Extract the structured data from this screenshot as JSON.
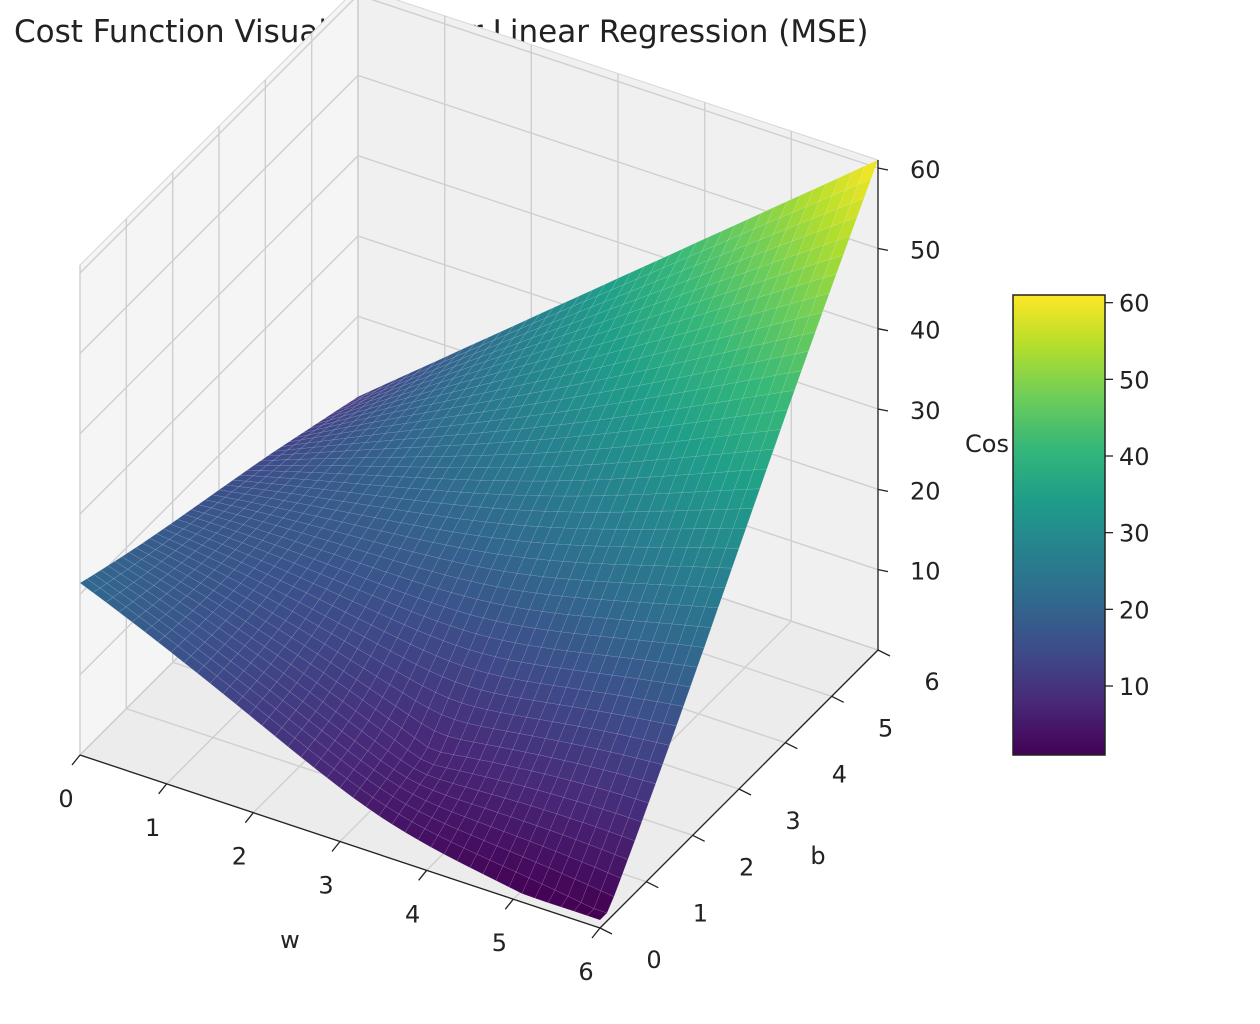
{
  "chart_data": {
    "type": "surface3d",
    "title": "Cost Function Visualization for Linear Regression (MSE)",
    "xlabel": "w",
    "ylabel": "b",
    "zlabel": "Cos",
    "x_range": [
      0,
      6
    ],
    "y_range": [
      0,
      6
    ],
    "z_range": [
      0,
      61
    ],
    "x_ticks": [
      0,
      1,
      2,
      3,
      4,
      5,
      6
    ],
    "y_ticks": [
      0,
      1,
      2,
      3,
      4,
      5,
      6
    ],
    "z_ticks": [
      10,
      20,
      30,
      40,
      50,
      60
    ],
    "colormap": "viridis",
    "colorbar": {
      "ticks": [
        10,
        20,
        30,
        40,
        50,
        60
      ],
      "range": [
        1,
        61
      ]
    },
    "surface_corners": [
      {
        "w": 0,
        "b": 0,
        "cost": 22
      },
      {
        "w": 6,
        "b": 0,
        "cost": 1
      },
      {
        "w": 6,
        "b": 6,
        "cost": 61
      },
      {
        "w": 0,
        "b": 6,
        "cost": 10
      }
    ],
    "minimum": {
      "w": 3.5,
      "b": 1,
      "cost": 1
    },
    "grid": true
  }
}
